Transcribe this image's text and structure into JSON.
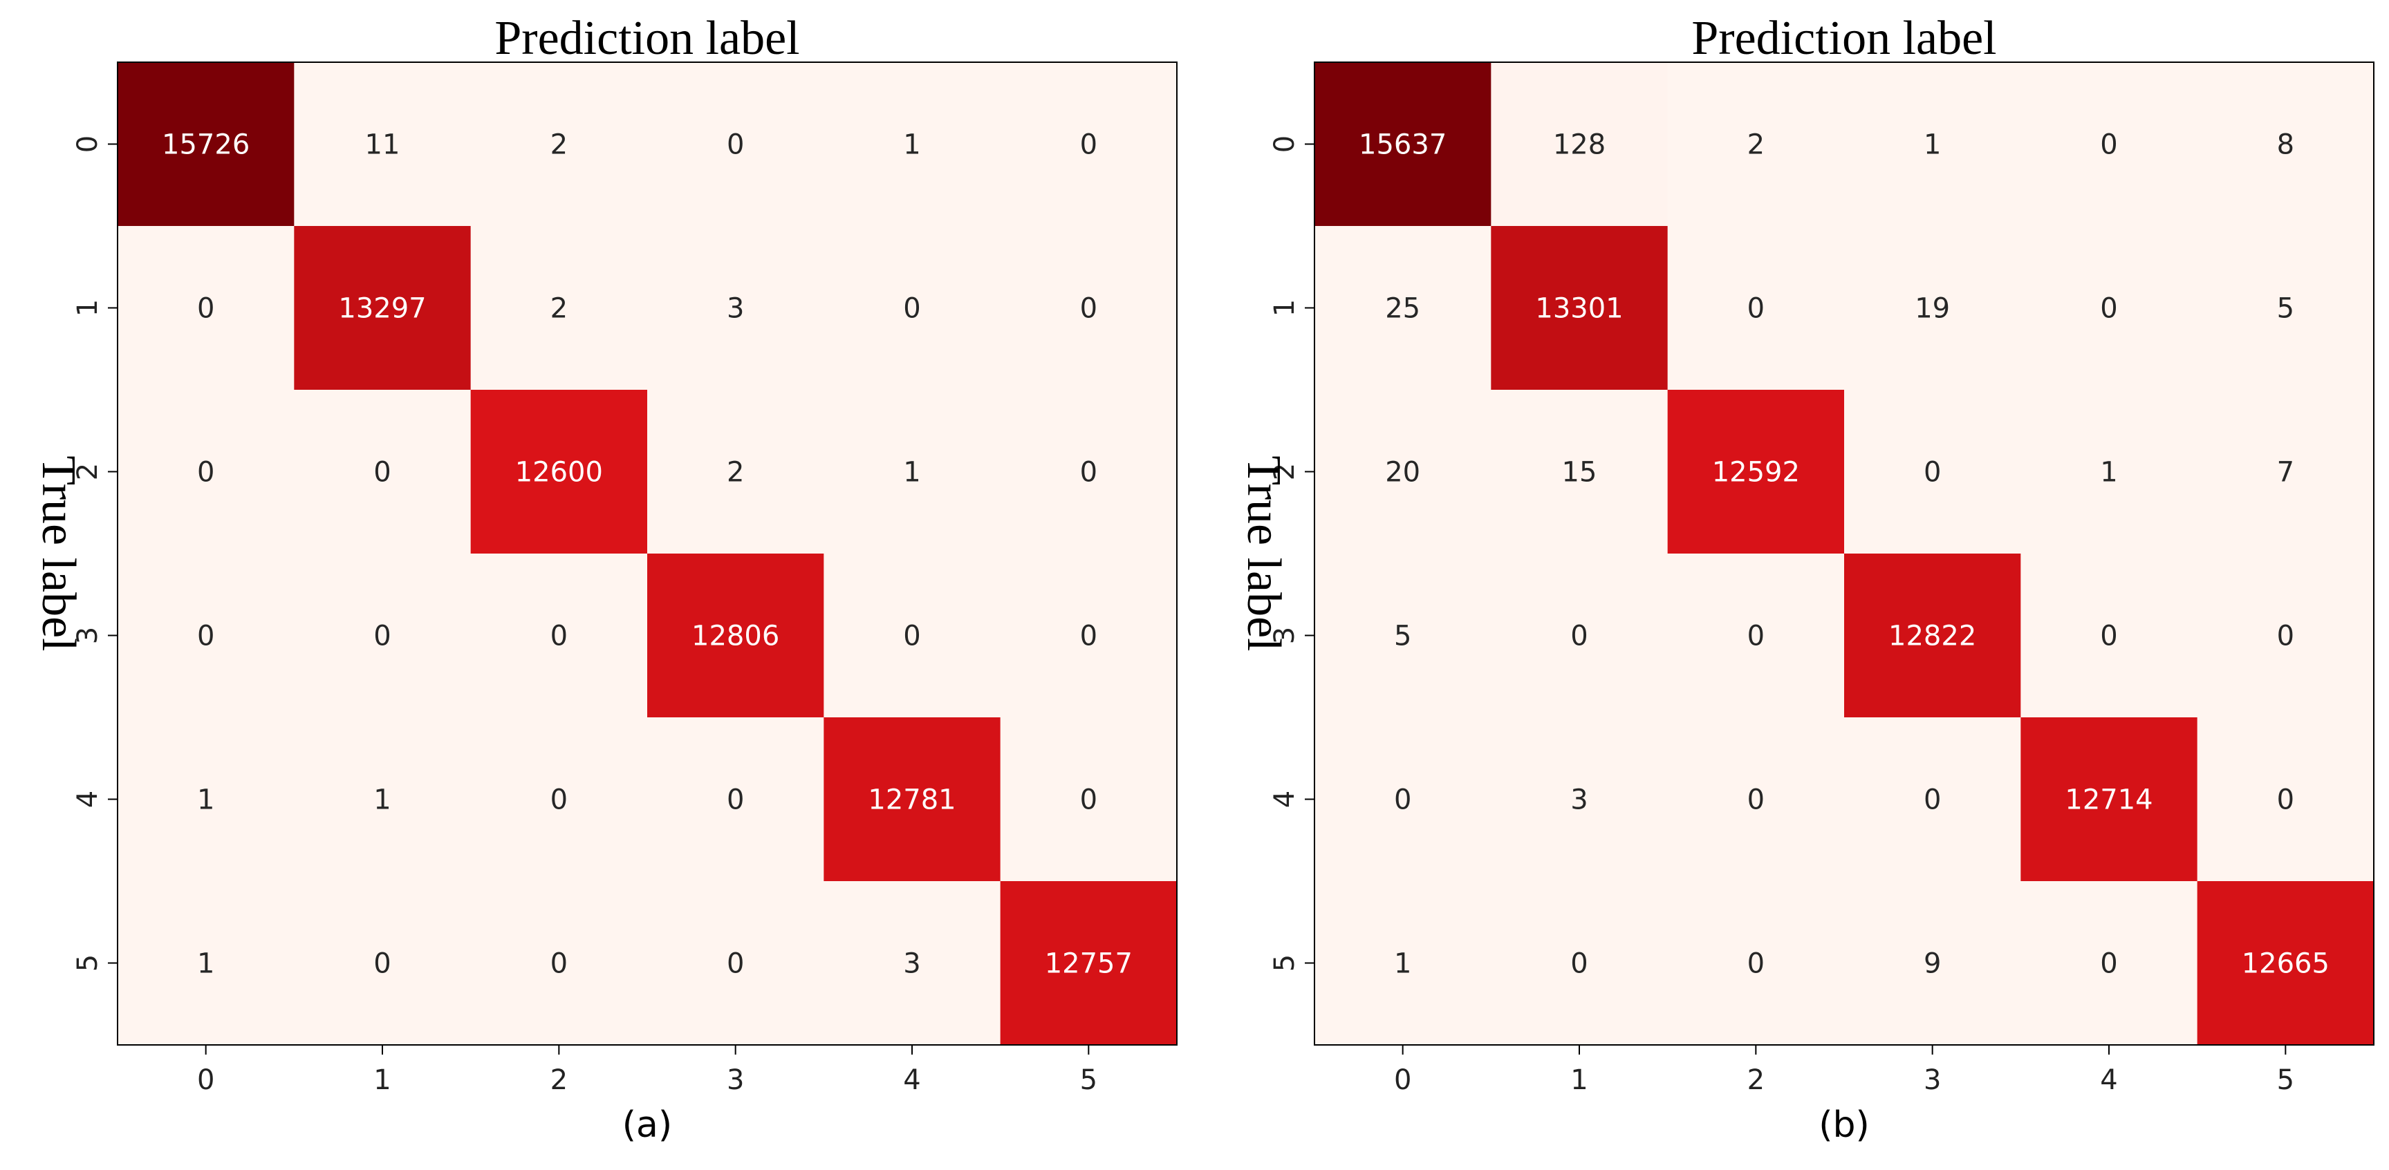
{
  "chart_data": [
    {
      "type": "heatmap",
      "title": "Prediction label",
      "ylabel": "True label",
      "xlabel": "(a)",
      "x_ticks": [
        "0",
        "1",
        "2",
        "3",
        "4",
        "5"
      ],
      "y_ticks": [
        "0",
        "1",
        "2",
        "3",
        "4",
        "5"
      ],
      "matrix": [
        [
          15726,
          11,
          2,
          0,
          1,
          0
        ],
        [
          0,
          13297,
          2,
          3,
          0,
          0
        ],
        [
          0,
          0,
          12600,
          2,
          1,
          0
        ],
        [
          0,
          0,
          0,
          12806,
          0,
          0
        ],
        [
          1,
          1,
          0,
          0,
          12781,
          0
        ],
        [
          1,
          0,
          0,
          0,
          3,
          12757
        ]
      ],
      "colormap": "Reds",
      "colors": {
        "low": "#fff5f0",
        "mid": "#db1318",
        "high": "#7a0006"
      }
    },
    {
      "type": "heatmap",
      "title": "Prediction label",
      "ylabel": "True label",
      "xlabel": "(b)",
      "x_ticks": [
        "0",
        "1",
        "2",
        "3",
        "4",
        "5"
      ],
      "y_ticks": [
        "0",
        "1",
        "2",
        "3",
        "4",
        "5"
      ],
      "matrix": [
        [
          15637,
          128,
          2,
          1,
          0,
          8
        ],
        [
          25,
          13301,
          0,
          19,
          0,
          5
        ],
        [
          20,
          15,
          12592,
          0,
          1,
          7
        ],
        [
          5,
          0,
          0,
          12822,
          0,
          0
        ],
        [
          0,
          3,
          0,
          0,
          12714,
          0
        ],
        [
          1,
          0,
          0,
          9,
          0,
          12665
        ]
      ],
      "colormap": "Reds",
      "colors": {
        "low": "#fff5f0",
        "mid": "#db1318",
        "high": "#7a0006"
      }
    }
  ]
}
